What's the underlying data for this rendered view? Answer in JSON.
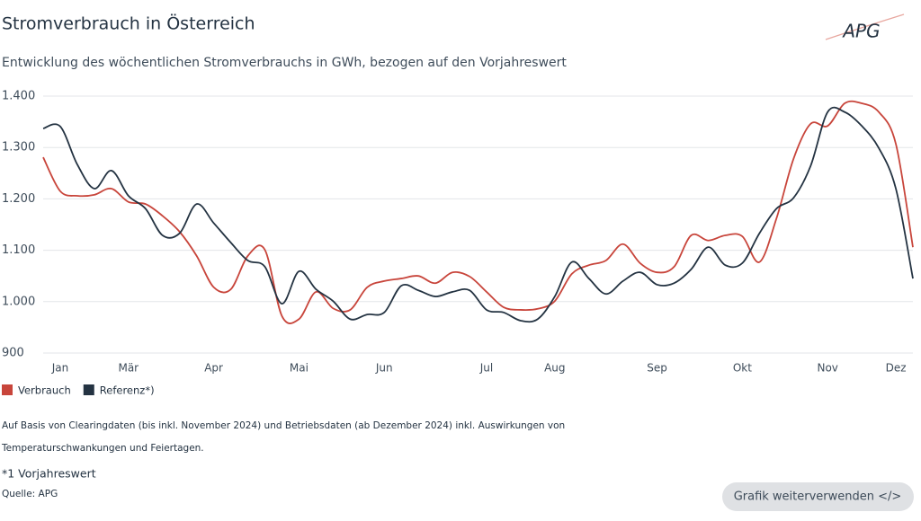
{
  "chart_data": {
    "type": "line",
    "title": "Stromverbrauch in Österreich",
    "subtitle": "Entwicklung des wöchentlichen Stromverbrauchs in GWh, bezogen auf den Vorjahreswert",
    "categories": [
      null,
      "Jan",
      null,
      null,
      null,
      "Mär",
      null,
      null,
      null,
      null,
      "Apr",
      null,
      null,
      null,
      null,
      "Mai",
      null,
      null,
      null,
      null,
      "Jun",
      null,
      null,
      null,
      null,
      null,
      "Jul",
      null,
      null,
      null,
      "Aug",
      null,
      null,
      null,
      null,
      null,
      "Sep",
      null,
      null,
      null,
      null,
      "Okt",
      null,
      null,
      null,
      null,
      "Nov",
      null,
      null,
      null,
      "Dez",
      null
    ],
    "series": [
      {
        "name": "Verbrauch",
        "color": "#c8453b",
        "values": [
          1281,
          1215,
          1206,
          1208,
          1220,
          1194,
          1190,
          1167,
          1136,
          1089,
          1028,
          1024,
          1089,
          1101,
          972,
          966,
          1019,
          987,
          984,
          1028,
          1040,
          1045,
          1050,
          1036,
          1057,
          1049,
          1019,
          989,
          984,
          986,
          1001,
          1054,
          1071,
          1080,
          1112,
          1075,
          1057,
          1068,
          1129,
          1119,
          1129,
          1127,
          1077,
          1162,
          1278,
          1346,
          1342,
          1386,
          1386,
          1369,
          1307,
          1106
        ]
      },
      {
        "name": "Referenz*)",
        "color": "#243342",
        "values": [
          1337,
          1341,
          1267,
          1220,
          1255,
          1206,
          1181,
          1129,
          1133,
          1190,
          1153,
          1115,
          1080,
          1068,
          996,
          1059,
          1024,
          1001,
          966,
          975,
          979,
          1031,
          1022,
          1010,
          1019,
          1022,
          984,
          979,
          963,
          966,
          1010,
          1077,
          1045,
          1015,
          1040,
          1057,
          1033,
          1036,
          1063,
          1106,
          1071,
          1075,
          1133,
          1181,
          1202,
          1264,
          1369,
          1369,
          1342,
          1299,
          1220,
          1045
        ]
      }
    ],
    "ylim": [
      900,
      1400
    ],
    "yticks": [
      900,
      {
        "value": 1000,
        "label": "1.000"
      },
      {
        "value": 1100,
        "label": "1.100"
      },
      {
        "value": 1200,
        "label": "1.200"
      },
      {
        "value": 1300,
        "label": "1.300"
      },
      {
        "value": 1400,
        "label": "1.400"
      }
    ],
    "grid": true,
    "legend": "bottom-left"
  },
  "logo": "APG",
  "footer": {
    "note_lines": [
      "Auf Basis von Clearingdaten (bis inkl. November 2024) und Betriebsdaten (ab Dezember 2024) inkl. Auswirkungen von",
      "Temperaturschwankungen und Feiertagen."
    ],
    "footnote": "*1 Vorjahreswert",
    "source": "Quelle: APG"
  },
  "button": "Grafik weiterverwenden </>"
}
